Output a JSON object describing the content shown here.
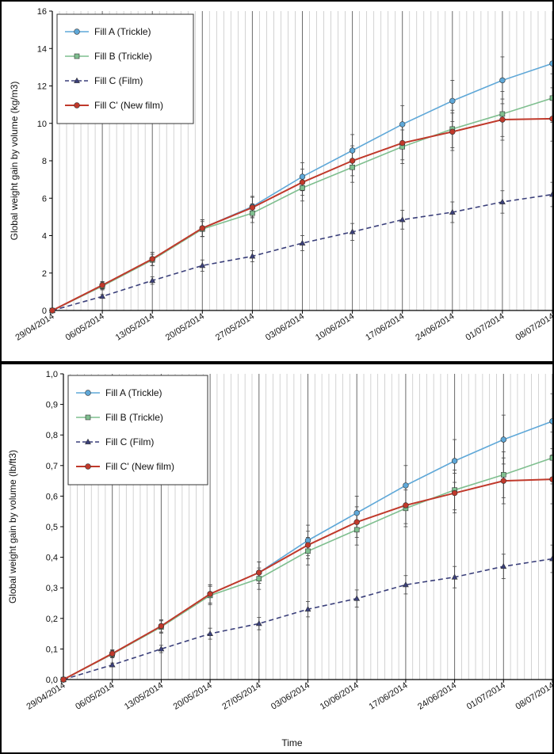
{
  "colors": {
    "fill_a": "#5fa8d8",
    "fill_b": "#7fbf8f",
    "fill_c": "#3a3f7a",
    "fill_c_prime": "#c0392b",
    "grid_minor": "#c8c8c8",
    "grid_major": "#6a6a6a"
  },
  "chart_data": [
    {
      "type": "line",
      "title": "",
      "xlabel": "",
      "ylabel": "Global weight gain by volume  (kg/m3)",
      "ylim": [
        0,
        16
      ],
      "yticks": [
        "0",
        "2",
        "4",
        "6",
        "8",
        "10",
        "12",
        "14",
        "16"
      ],
      "xticks": [
        "29/04/2014",
        "06/05/2014",
        "13/05/2014",
        "20/05/2014",
        "27/05/2014",
        "03/06/2014",
        "10/06/2014",
        "17/06/2014",
        "24/06/2014",
        "01/07/2014",
        "08/07/2014"
      ],
      "x": [
        "29/04/2014",
        "06/05/2014",
        "13/05/2014",
        "20/05/2014",
        "27/05/2014",
        "03/06/2014",
        "10/06/2014",
        "17/06/2014",
        "24/06/2014",
        "01/07/2014",
        "08/07/2014"
      ],
      "grid": true,
      "legend_position": "top-left",
      "series": [
        {
          "name": "Fill A (Trickle)",
          "marker": "circle",
          "dashed": false,
          "values": [
            0,
            1.35,
            2.75,
            4.4,
            5.55,
            7.15,
            8.55,
            9.95,
            11.2,
            12.3,
            13.2
          ],
          "errors": [
            0,
            0.2,
            0.35,
            0.45,
            0.55,
            0.75,
            0.85,
            1.0,
            1.1,
            1.25,
            1.3
          ]
        },
        {
          "name": "Fill B (Trickle)",
          "marker": "square",
          "dashed": false,
          "values": [
            0,
            1.3,
            2.7,
            4.35,
            5.2,
            6.55,
            7.65,
            8.75,
            9.7,
            10.5,
            11.35
          ],
          "errors": [
            0,
            0.2,
            0.3,
            0.4,
            0.5,
            0.7,
            0.8,
            0.9,
            1.0,
            1.2,
            1.3
          ]
        },
        {
          "name": "Fill C (Film)",
          "marker": "triangle",
          "dashed": true,
          "values": [
            0,
            0.75,
            1.6,
            2.4,
            2.9,
            3.6,
            4.2,
            4.85,
            5.25,
            5.8,
            6.2
          ],
          "errors": [
            0,
            0.1,
            0.2,
            0.3,
            0.3,
            0.4,
            0.45,
            0.5,
            0.55,
            0.6,
            0.65
          ]
        },
        {
          "name": "Fill C' (New film)",
          "marker": "circle",
          "dashed": false,
          "values": [
            0,
            1.35,
            2.75,
            4.4,
            5.5,
            6.85,
            8.0,
            8.95,
            9.55,
            10.2,
            10.25
          ],
          "errors": [
            0,
            0.2,
            0.35,
            0.45,
            0.55,
            0.7,
            0.8,
            0.9,
            1.0,
            1.1,
            1.2
          ]
        }
      ]
    },
    {
      "type": "line",
      "title": "",
      "xlabel": "Time",
      "ylabel": "Global weight gain by volume  (lb/ft3)",
      "ylim": [
        0,
        1.0
      ],
      "yticks": [
        "0,0",
        "0,1",
        "0,2",
        "0,3",
        "0,4",
        "0,5",
        "0,6",
        "0,7",
        "0,8",
        "0,9",
        "1,0"
      ],
      "xticks": [
        "29/04/2014",
        "06/05/2014",
        "13/05/2014",
        "20/05/2014",
        "27/05/2014",
        "03/06/2014",
        "10/06/2014",
        "17/06/2014",
        "24/06/2014",
        "01/07/2014",
        "08/07/2014"
      ],
      "x": [
        "29/04/2014",
        "06/05/2014",
        "13/05/2014",
        "20/05/2014",
        "27/05/2014",
        "03/06/2014",
        "10/06/2014",
        "17/06/2014",
        "24/06/2014",
        "01/07/2014",
        "08/07/2014"
      ],
      "grid": true,
      "legend_position": "top-left",
      "series": [
        {
          "name": "Fill A (Trickle)",
          "marker": "circle",
          "dashed": false,
          "values": [
            0,
            0.085,
            0.175,
            0.28,
            0.35,
            0.455,
            0.545,
            0.635,
            0.715,
            0.785,
            0.845
          ],
          "errors": [
            0,
            0.012,
            0.02,
            0.03,
            0.035,
            0.05,
            0.055,
            0.065,
            0.07,
            0.08,
            0.09
          ]
        },
        {
          "name": "Fill B (Trickle)",
          "marker": "square",
          "dashed": false,
          "values": [
            0,
            0.083,
            0.172,
            0.275,
            0.33,
            0.42,
            0.49,
            0.56,
            0.62,
            0.67,
            0.725
          ],
          "errors": [
            0,
            0.012,
            0.02,
            0.03,
            0.035,
            0.045,
            0.05,
            0.06,
            0.065,
            0.075,
            0.085
          ]
        },
        {
          "name": "Fill C (Film)",
          "marker": "triangle",
          "dashed": true,
          "values": [
            0,
            0.048,
            0.1,
            0.15,
            0.183,
            0.23,
            0.265,
            0.31,
            0.335,
            0.37,
            0.395
          ],
          "errors": [
            0,
            0.006,
            0.012,
            0.018,
            0.02,
            0.025,
            0.028,
            0.03,
            0.035,
            0.04,
            0.045
          ]
        },
        {
          "name": "Fill C' (New film)",
          "marker": "circle",
          "dashed": false,
          "values": [
            0,
            0.085,
            0.175,
            0.28,
            0.35,
            0.44,
            0.515,
            0.57,
            0.61,
            0.65,
            0.655
          ],
          "errors": [
            0,
            0.012,
            0.02,
            0.03,
            0.035,
            0.045,
            0.05,
            0.06,
            0.065,
            0.075,
            0.08
          ]
        }
      ]
    }
  ]
}
